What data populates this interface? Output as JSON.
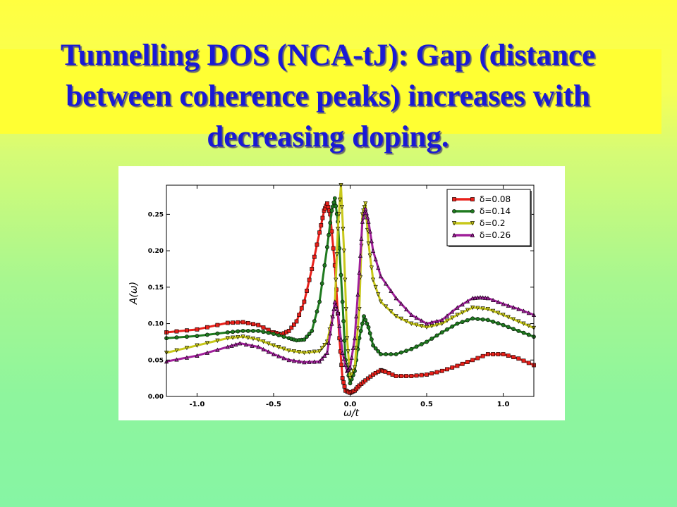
{
  "slide": {
    "title_lines": [
      "Tunnelling DOS (NCA-tJ): Gap (distance",
      "between coherence peaks) increases with",
      "decreasing doping."
    ]
  },
  "colors": {
    "title": "#1a1ad4",
    "band": "#ffff33"
  },
  "chart_data": {
    "type": "line",
    "xlabel": "ω/t",
    "ylabel": "A(ω)",
    "xlim": [
      -1.2,
      1.2
    ],
    "ylim": [
      0.0,
      0.29
    ],
    "xticks": [
      -1.0,
      -0.5,
      0.0,
      0.5,
      1.0
    ],
    "xtick_labels": [
      "-1.0",
      "-0.5",
      "0.0",
      "0.5",
      "1.0"
    ],
    "yticks": [
      0.0,
      0.05,
      0.1,
      0.15,
      0.2,
      0.25
    ],
    "ytick_labels": [
      "0.00",
      "0.05",
      "0.10",
      "0.15",
      "0.20",
      "0.25"
    ],
    "legend_position": "top-right",
    "grid": false,
    "series": [
      {
        "name": "δ=0.08",
        "color": "#e8201a",
        "marker": "square",
        "points": [
          [
            -1.2,
            0.088
          ],
          [
            -1.0,
            0.092
          ],
          [
            -0.8,
            0.101
          ],
          [
            -0.7,
            0.102
          ],
          [
            -0.6,
            0.098
          ],
          [
            -0.5,
            0.088
          ],
          [
            -0.45,
            0.085
          ],
          [
            -0.4,
            0.09
          ],
          [
            -0.35,
            0.103
          ],
          [
            -0.3,
            0.13
          ],
          [
            -0.25,
            0.175
          ],
          [
            -0.2,
            0.225
          ],
          [
            -0.17,
            0.255
          ],
          [
            -0.15,
            0.265
          ],
          [
            -0.13,
            0.25
          ],
          [
            -0.1,
            0.18
          ],
          [
            -0.07,
            0.08
          ],
          [
            -0.05,
            0.025
          ],
          [
            -0.03,
            0.008
          ],
          [
            0.0,
            0.005
          ],
          [
            0.03,
            0.008
          ],
          [
            0.06,
            0.015
          ],
          [
            0.1,
            0.022
          ],
          [
            0.15,
            0.03
          ],
          [
            0.2,
            0.036
          ],
          [
            0.23,
            0.034
          ],
          [
            0.3,
            0.028
          ],
          [
            0.4,
            0.028
          ],
          [
            0.5,
            0.03
          ],
          [
            0.6,
            0.035
          ],
          [
            0.7,
            0.042
          ],
          [
            0.8,
            0.05
          ],
          [
            0.9,
            0.058
          ],
          [
            1.0,
            0.058
          ],
          [
            1.1,
            0.052
          ],
          [
            1.2,
            0.043
          ]
        ]
      },
      {
        "name": "δ=0.14",
        "color": "#1f7a1f",
        "marker": "circle",
        "points": [
          [
            -1.2,
            0.08
          ],
          [
            -1.0,
            0.083
          ],
          [
            -0.8,
            0.088
          ],
          [
            -0.7,
            0.09
          ],
          [
            -0.6,
            0.09
          ],
          [
            -0.5,
            0.086
          ],
          [
            -0.4,
            0.08
          ],
          [
            -0.35,
            0.077
          ],
          [
            -0.3,
            0.078
          ],
          [
            -0.25,
            0.09
          ],
          [
            -0.2,
            0.13
          ],
          [
            -0.15,
            0.205
          ],
          [
            -0.12,
            0.255
          ],
          [
            -0.1,
            0.272
          ],
          [
            -0.08,
            0.24
          ],
          [
            -0.05,
            0.13
          ],
          [
            -0.03,
            0.05
          ],
          [
            0.0,
            0.018
          ],
          [
            0.03,
            0.035
          ],
          [
            0.06,
            0.08
          ],
          [
            0.09,
            0.11
          ],
          [
            0.12,
            0.095
          ],
          [
            0.15,
            0.07
          ],
          [
            0.2,
            0.058
          ],
          [
            0.3,
            0.058
          ],
          [
            0.4,
            0.065
          ],
          [
            0.5,
            0.075
          ],
          [
            0.6,
            0.088
          ],
          [
            0.7,
            0.1
          ],
          [
            0.8,
            0.107
          ],
          [
            0.9,
            0.105
          ],
          [
            1.0,
            0.098
          ],
          [
            1.1,
            0.09
          ],
          [
            1.2,
            0.082
          ]
        ]
      },
      {
        "name": "δ=0.2",
        "color": "#c8c81a",
        "marker": "triangle-down",
        "points": [
          [
            -1.2,
            0.06
          ],
          [
            -1.0,
            0.07
          ],
          [
            -0.8,
            0.08
          ],
          [
            -0.7,
            0.082
          ],
          [
            -0.6,
            0.078
          ],
          [
            -0.5,
            0.07
          ],
          [
            -0.4,
            0.063
          ],
          [
            -0.3,
            0.06
          ],
          [
            -0.2,
            0.062
          ],
          [
            -0.15,
            0.075
          ],
          [
            -0.1,
            0.125
          ],
          [
            -0.08,
            0.23
          ],
          [
            -0.06,
            0.29
          ],
          [
            -0.04,
            0.2
          ],
          [
            -0.02,
            0.08
          ],
          [
            0.0,
            0.025
          ],
          [
            0.03,
            0.04
          ],
          [
            0.06,
            0.12
          ],
          [
            0.08,
            0.25
          ],
          [
            0.1,
            0.265
          ],
          [
            0.12,
            0.21
          ],
          [
            0.15,
            0.16
          ],
          [
            0.2,
            0.13
          ],
          [
            0.3,
            0.11
          ],
          [
            0.4,
            0.1
          ],
          [
            0.5,
            0.095
          ],
          [
            0.6,
            0.1
          ],
          [
            0.7,
            0.112
          ],
          [
            0.8,
            0.122
          ],
          [
            0.9,
            0.12
          ],
          [
            1.0,
            0.112
          ],
          [
            1.1,
            0.103
          ],
          [
            1.2,
            0.094
          ]
        ]
      },
      {
        "name": "δ=0.26",
        "color": "#a0209a",
        "marker": "triangle-up",
        "points": [
          [
            -1.2,
            0.048
          ],
          [
            -1.0,
            0.056
          ],
          [
            -0.8,
            0.068
          ],
          [
            -0.72,
            0.073
          ],
          [
            -0.6,
            0.068
          ],
          [
            -0.5,
            0.058
          ],
          [
            -0.4,
            0.05
          ],
          [
            -0.3,
            0.047
          ],
          [
            -0.2,
            0.048
          ],
          [
            -0.15,
            0.06
          ],
          [
            -0.12,
            0.1
          ],
          [
            -0.1,
            0.13
          ],
          [
            -0.08,
            0.115
          ],
          [
            -0.05,
            0.06
          ],
          [
            -0.02,
            0.035
          ],
          [
            0.0,
            0.04
          ],
          [
            0.03,
            0.08
          ],
          [
            0.06,
            0.17
          ],
          [
            0.08,
            0.24
          ],
          [
            0.1,
            0.258
          ],
          [
            0.12,
            0.24
          ],
          [
            0.15,
            0.2
          ],
          [
            0.2,
            0.165
          ],
          [
            0.3,
            0.135
          ],
          [
            0.4,
            0.112
          ],
          [
            0.5,
            0.1
          ],
          [
            0.6,
            0.105
          ],
          [
            0.7,
            0.122
          ],
          [
            0.8,
            0.135
          ],
          [
            0.85,
            0.136
          ],
          [
            0.9,
            0.135
          ],
          [
            1.0,
            0.127
          ],
          [
            1.1,
            0.12
          ],
          [
            1.2,
            0.112
          ]
        ]
      }
    ]
  }
}
